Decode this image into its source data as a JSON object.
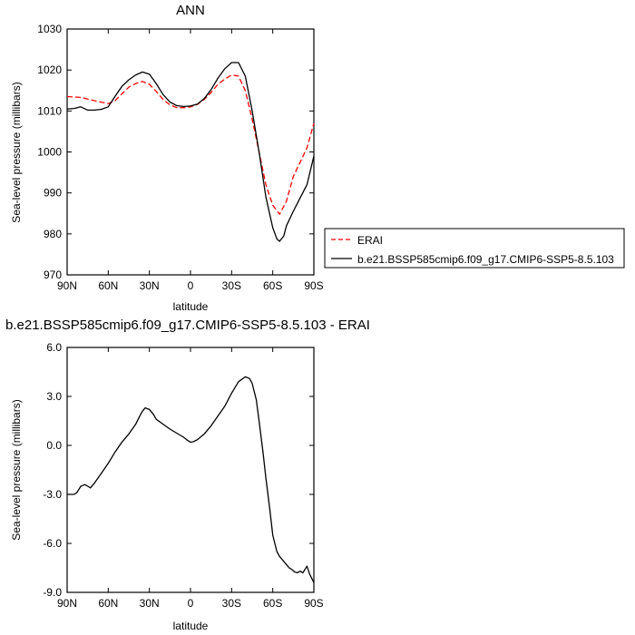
{
  "chart_data": [
    {
      "type": "line",
      "title": "ANN",
      "xlabel": "latitude",
      "ylabel": "Sea-level pressure (millibars)",
      "xlim": [
        90,
        -90
      ],
      "ylim": [
        970,
        1030
      ],
      "yticks": [
        970,
        980,
        990,
        1000,
        1010,
        1020,
        1030
      ],
      "yticklabels": [
        "970",
        "980",
        "990",
        "1000",
        "1010",
        "1020",
        "1030"
      ],
      "xticks": [
        90,
        60,
        30,
        0,
        -30,
        -60,
        -90
      ],
      "xticklabels": [
        "90N",
        "60N",
        "30N",
        "0",
        "30S",
        "60S",
        "90S"
      ],
      "legend_position": "right",
      "series": [
        {
          "name": "ERAI",
          "color": "#ff0000",
          "dash": "dashed",
          "x": [
            90,
            80,
            70,
            60,
            55,
            50,
            45,
            40,
            35,
            30,
            25,
            20,
            15,
            10,
            5,
            0,
            -5,
            -10,
            -15,
            -20,
            -25,
            -30,
            -35,
            -40,
            -45,
            -50,
            -55,
            -60,
            -65,
            -70,
            -75,
            -80,
            -85,
            -90
          ],
          "y": [
            1013.5,
            1013.3,
            1012.5,
            1011.8,
            1012.5,
            1014.2,
            1015.8,
            1016.7,
            1017.2,
            1016.5,
            1014.8,
            1012.8,
            1011.5,
            1010.8,
            1010.8,
            1011.0,
            1011.6,
            1012.8,
            1014.5,
            1016.5,
            1017.8,
            1018.8,
            1018.5,
            1015.0,
            1008.0,
            1000.0,
            992.0,
            987.0,
            984.8,
            988.0,
            994.0,
            997.5,
            1001.0,
            1007.0
          ]
        },
        {
          "name": "b.e21.BSSP585cmip6.f09_g17.CMIP6-SSP5-8.5.103",
          "color": "#000000",
          "dash": "solid",
          "x": [
            90,
            85,
            80,
            75,
            70,
            65,
            60,
            55,
            50,
            45,
            40,
            35,
            30,
            25,
            20,
            15,
            10,
            5,
            0,
            -5,
            -10,
            -15,
            -20,
            -25,
            -30,
            -35,
            -40,
            -45,
            -50,
            -55,
            -60,
            -63,
            -65,
            -68,
            -70,
            -75,
            -80,
            -85,
            -90
          ],
          "y": [
            1010.5,
            1010.6,
            1011.0,
            1010.2,
            1010.2,
            1010.4,
            1011.0,
            1013.6,
            1016.0,
            1017.6,
            1018.8,
            1019.5,
            1019.0,
            1016.7,
            1014.0,
            1012.2,
            1011.3,
            1011.1,
            1011.2,
            1011.7,
            1013.0,
            1015.2,
            1018.0,
            1020.3,
            1021.8,
            1021.8,
            1018.5,
            1010.0,
            1000.0,
            989.0,
            981.5,
            978.8,
            978.2,
            979.5,
            982.0,
            985.5,
            988.8,
            992.0,
            999.0
          ]
        }
      ]
    },
    {
      "type": "line",
      "title": "b.e21.BSSP585cmip6.f09_g17.CMIP6-SSP5-8.5.103 - ERAI",
      "xlabel": "latitude",
      "ylabel": "Sea-level pressure (millibars)",
      "xlim": [
        90,
        -90
      ],
      "ylim": [
        -9.0,
        6.0
      ],
      "yticks": [
        -9,
        -6,
        -3,
        0,
        3,
        6
      ],
      "yticklabels": [
        "-9.0",
        "-6.0",
        "-3.0",
        "0.0",
        "3.0",
        "6.0"
      ],
      "xticks": [
        90,
        60,
        30,
        0,
        -30,
        -60,
        -90
      ],
      "xticklabels": [
        "90N",
        "60N",
        "30N",
        "0",
        "30S",
        "60S",
        "90S"
      ],
      "series": [
        {
          "color": "#000000",
          "dash": "solid",
          "x": [
            90,
            85,
            83,
            80,
            77,
            75,
            73,
            70,
            65,
            60,
            55,
            50,
            45,
            40,
            37,
            35,
            33,
            30,
            27,
            25,
            20,
            15,
            10,
            5,
            2,
            0,
            -2,
            -5,
            -10,
            -15,
            -20,
            -25,
            -30,
            -35,
            -40,
            -43,
            -45,
            -48,
            -50,
            -53,
            -55,
            -58,
            -60,
            -63,
            -65,
            -68,
            -70,
            -72,
            -74,
            -76,
            -78,
            -80,
            -82,
            -85,
            -87,
            -90
          ],
          "y": [
            -3.0,
            -3.0,
            -2.9,
            -2.5,
            -2.4,
            -2.5,
            -2.6,
            -2.3,
            -1.7,
            -1.1,
            -0.4,
            0.2,
            0.7,
            1.3,
            1.8,
            2.1,
            2.3,
            2.2,
            1.9,
            1.6,
            1.3,
            1.0,
            0.75,
            0.5,
            0.3,
            0.2,
            0.22,
            0.35,
            0.7,
            1.2,
            1.8,
            2.4,
            3.2,
            3.9,
            4.2,
            4.1,
            3.8,
            2.8,
            1.5,
            -0.5,
            -2.0,
            -4.0,
            -5.5,
            -6.5,
            -6.8,
            -7.1,
            -7.3,
            -7.5,
            -7.6,
            -7.75,
            -7.8,
            -7.7,
            -7.8,
            -7.4,
            -7.9,
            -8.4
          ]
        }
      ]
    }
  ]
}
